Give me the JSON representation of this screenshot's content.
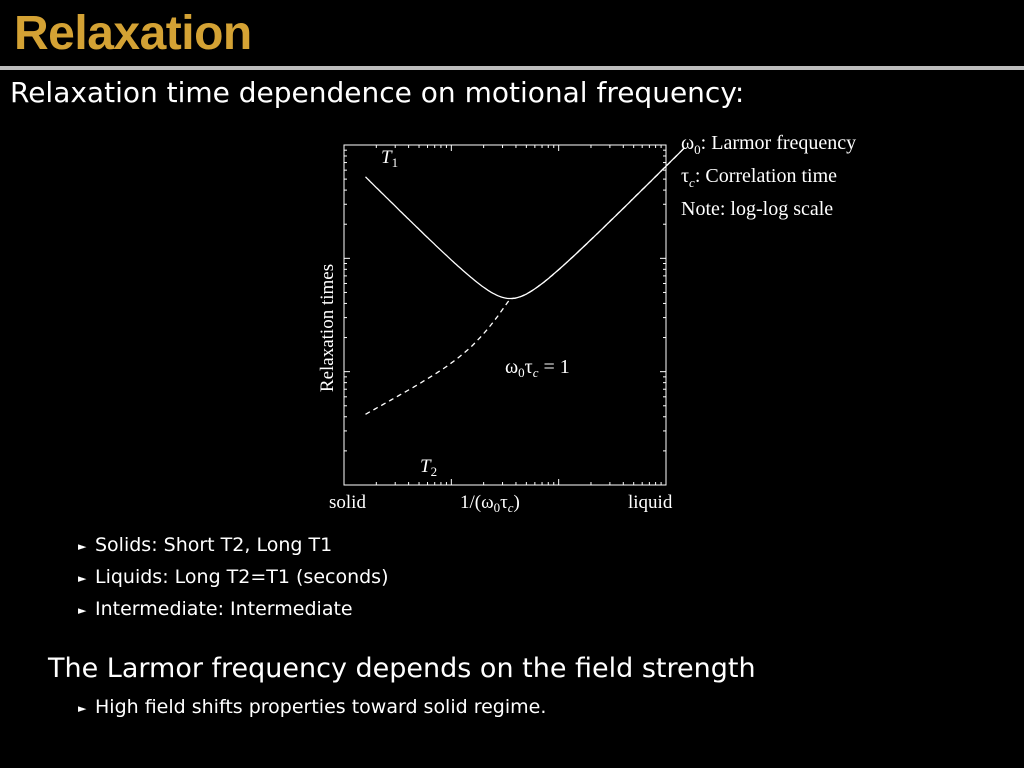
{
  "slide": {
    "title": "Relaxation",
    "subtitle": "Relaxation time dependence on motional frequency:",
    "legend": [
      {
        "symbol": "ω",
        "sub": "0",
        "text": ": Larmor frequency"
      },
      {
        "symbol": "τ",
        "sub": "c",
        "text": ": Correlation time"
      },
      {
        "symbol": "",
        "sub": "",
        "text": "Note: log-log scale"
      }
    ],
    "bullets": [
      "Solids: Short T2, Long T1",
      "Liquids: Long T2=T1 (seconds)",
      "Intermediate: Intermediate"
    ],
    "heading2": "The Larmor frequency depends on the field strength",
    "bullets2": [
      "High field shifts properties toward solid regime."
    ]
  },
  "chart_data": {
    "type": "line",
    "ylabel": "Relaxation times",
    "x_tick_labels": {
      "left": "solid",
      "center": "1/(ω0τc)",
      "right": "liquid"
    },
    "scale": "log-log",
    "annotation": "ω0τc = 1",
    "series": [
      {
        "name": "T1",
        "style": "solid",
        "description": "falls from high at solid end to a minimum near ω0τc = 1, then rises toward liquid end"
      },
      {
        "name": "T2",
        "style": "dashed",
        "description": "rises monotonically from short at solid end, merging with T1 at liquid end"
      }
    ]
  }
}
